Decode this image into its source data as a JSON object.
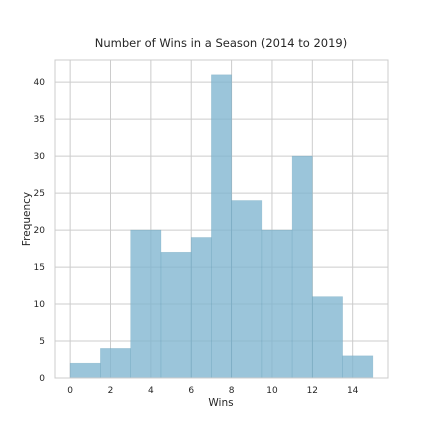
{
  "chart_data": {
    "type": "bar",
    "title": "Number of Wins in a Season (2014 to 2019)",
    "xlabel": "Wins",
    "ylabel": "Frequency",
    "xlim": [
      -0.75,
      15.75
    ],
    "ylim": [
      0,
      43
    ],
    "xticks": [
      0,
      2,
      4,
      6,
      8,
      10,
      12,
      14
    ],
    "yticks": [
      0,
      5,
      10,
      15,
      20,
      25,
      30,
      35,
      40
    ],
    "grid": true,
    "bins": [
      {
        "x0": 0.0,
        "x1": 1.5,
        "value": 2
      },
      {
        "x0": 1.5,
        "x1": 3.0,
        "value": 4
      },
      {
        "x0": 3.0,
        "x1": 4.5,
        "value": 20
      },
      {
        "x0": 4.5,
        "x1": 6.0,
        "value": 17
      },
      {
        "x0": 6.0,
        "x1": 7.0,
        "value": 19
      },
      {
        "x0": 7.0,
        "x1": 8.0,
        "value": 41
      },
      {
        "x0": 8.0,
        "x1": 9.5,
        "value": 24
      },
      {
        "x0": 9.5,
        "x1": 11.0,
        "value": 20
      },
      {
        "x0": 11.0,
        "x1": 12.0,
        "value": 30
      },
      {
        "x0": 12.0,
        "x1": 13.5,
        "value": 11
      },
      {
        "x0": 13.5,
        "x1": 15.0,
        "value": 3
      }
    ],
    "bar_color": "#7fb5cf"
  }
}
